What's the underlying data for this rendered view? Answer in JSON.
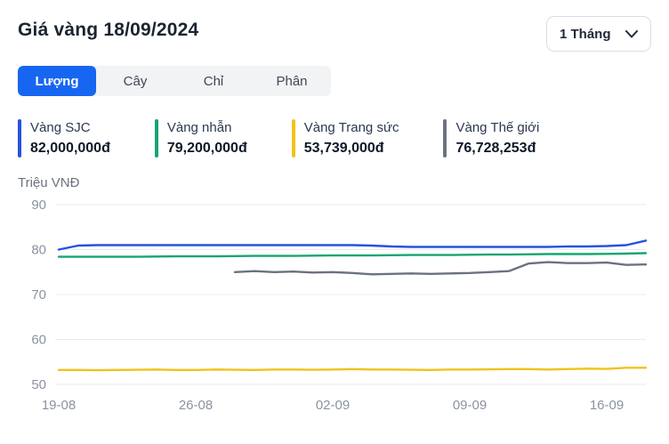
{
  "header": {
    "title": "Giá vàng 18/09/2024",
    "period_selected": "1 Tháng"
  },
  "tabs": {
    "active_index": 0,
    "items": [
      {
        "label": "Lượng"
      },
      {
        "label": "Cây"
      },
      {
        "label": "Chỉ"
      },
      {
        "label": "Phân"
      }
    ]
  },
  "legend": {
    "items": [
      {
        "name": "Vàng SJC",
        "value": "82,000,000đ",
        "color": "#2553e0"
      },
      {
        "name": "Vàng nhẫn",
        "value": "79,200,000đ",
        "color": "#17a571"
      },
      {
        "name": "Vàng Trang sức",
        "value": "53,739,000đ",
        "color": "#f1c21b"
      },
      {
        "name": "Vàng Thế giới",
        "value": "76,728,253đ",
        "color": "#6b7280"
      }
    ]
  },
  "chart_data": {
    "type": "line",
    "title": "Giá vàng 18/09/2024",
    "xlabel": "",
    "ylabel": "Triệu VNĐ",
    "ylim": [
      50,
      90
    ],
    "yticks": [
      90,
      80,
      70,
      60,
      50
    ],
    "grid": true,
    "legend_position": "top",
    "x_total_days": 30,
    "x_tick_days": [
      0,
      7,
      14,
      21,
      28
    ],
    "x_tick_labels": [
      "19-08",
      "26-08",
      "02-09",
      "09-09",
      "16-09"
    ],
    "series": [
      {
        "name": "Vàng SJC",
        "color": "#2553e0",
        "start_day": 0,
        "values": [
          80.0,
          80.9,
          81.0,
          81.0,
          81.0,
          81.0,
          81.0,
          81.0,
          81.0,
          81.0,
          81.0,
          81.0,
          81.0,
          81.0,
          81.0,
          81.0,
          80.9,
          80.7,
          80.6,
          80.6,
          80.6,
          80.6,
          80.6,
          80.6,
          80.6,
          80.6,
          80.7,
          80.7,
          80.8,
          81.0,
          82.0
        ]
      },
      {
        "name": "Vàng nhẫn",
        "color": "#17a571",
        "start_day": 0,
        "values": [
          78.4,
          78.4,
          78.4,
          78.4,
          78.4,
          78.45,
          78.5,
          78.5,
          78.5,
          78.55,
          78.6,
          78.6,
          78.6,
          78.65,
          78.7,
          78.7,
          78.7,
          78.75,
          78.8,
          78.8,
          78.8,
          78.85,
          78.9,
          78.9,
          78.95,
          79.0,
          79.0,
          79.0,
          79.05,
          79.1,
          79.2
        ]
      },
      {
        "name": "Vàng Trang sức",
        "color": "#f1c21b",
        "start_day": 0,
        "values": [
          53.2,
          53.2,
          53.15,
          53.2,
          53.25,
          53.3,
          53.2,
          53.2,
          53.3,
          53.25,
          53.2,
          53.3,
          53.3,
          53.25,
          53.3,
          53.4,
          53.3,
          53.3,
          53.25,
          53.2,
          53.3,
          53.3,
          53.35,
          53.4,
          53.4,
          53.3,
          53.4,
          53.5,
          53.45,
          53.7,
          53.7
        ]
      },
      {
        "name": "Vàng Thế giới",
        "color": "#6b7280",
        "start_day": 9,
        "values": [
          75.0,
          75.2,
          75.0,
          75.1,
          74.9,
          75.0,
          74.8,
          74.5,
          74.6,
          74.7,
          74.6,
          74.7,
          74.8,
          75.0,
          75.2,
          76.9,
          77.2,
          77.0,
          77.0,
          77.1,
          76.6,
          76.7
        ]
      }
    ]
  }
}
